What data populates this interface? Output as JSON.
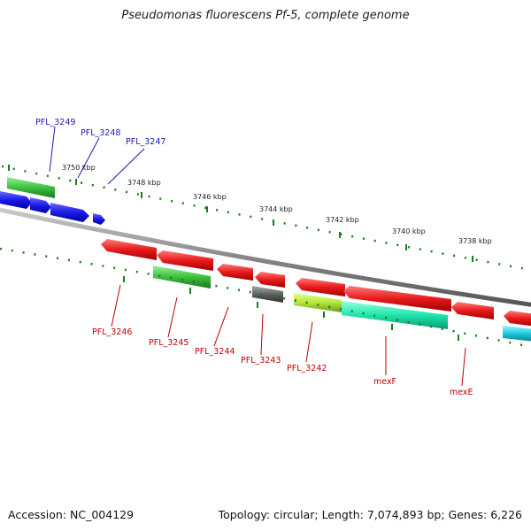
{
  "title": "Pseudomonas fluorescens Pf-5, complete genome",
  "footer": {
    "accession": "Accession: NC_004129",
    "topology": "Topology: circular",
    "length": "Length: 7,074,893 bp",
    "genes": "Genes: 6,226"
  },
  "colors": {
    "forward_gene": "#1a1ae6",
    "reverse_gene": "#e61a1a",
    "forward_label": "#1a1ab0",
    "reverse_label": "#c00000",
    "backbone": "#888888",
    "tick": "#1d7a1d",
    "green_feature": "#3cc03c",
    "dark_feature": "#606060",
    "yellow_feature": "#b4e63c",
    "teal_feature": "#1ee6aa",
    "cyan_feature": "#1ec8dc"
  },
  "kbp_labels": [
    "3750 kbp",
    "3748 kbp",
    "3746 kbp",
    "3744 kbp",
    "3742 kbp",
    "3740 kbp",
    "3738 kbp"
  ],
  "forward_genes": [
    "PFL_3249",
    "PFL_3248",
    "PFL_3247"
  ],
  "reverse_genes": [
    "PFL_3246",
    "PFL_3245",
    "PFL_3244",
    "PFL_3243",
    "PFL_3242",
    "mexF",
    "mexE"
  ]
}
